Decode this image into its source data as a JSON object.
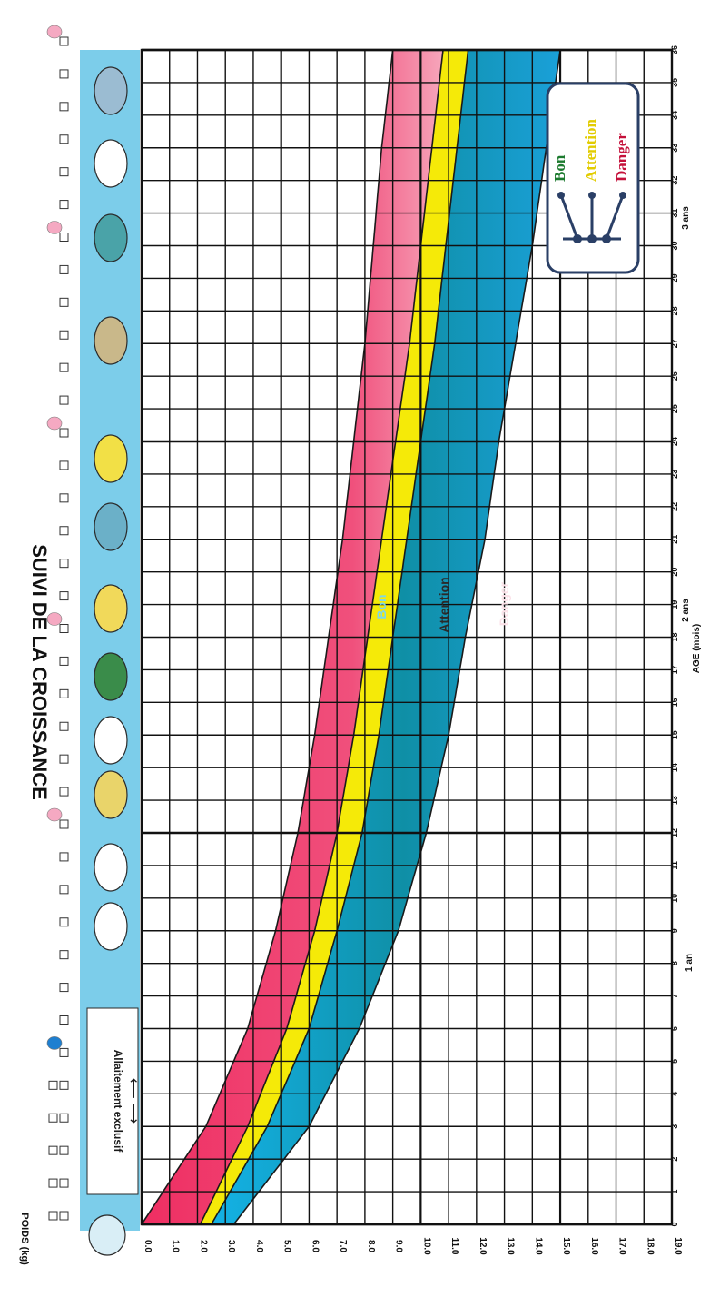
{
  "title": "SUIVI DE LA CROISSANCE",
  "y_axis_title": "POIDS (kg)",
  "x_axis_title": "AGE (mois)",
  "year_labels": [
    "1 an",
    "2 ans",
    "3 ans"
  ],
  "feeding_label": "Allaitement exclusif",
  "legend": {
    "items": [
      {
        "label": "Bon",
        "color": "#1c7a2e"
      },
      {
        "label": "Attention",
        "color": "#e8d400"
      },
      {
        "label": "Danger",
        "color": "#c4103a"
      }
    ]
  },
  "band_labels": {
    "good": "Bon",
    "caution": "Attention",
    "danger": "Danger"
  },
  "colors": {
    "good": "#19aee0",
    "good_core": "#0f8a9a",
    "caution": "#f5ea08",
    "danger": "#ec3a6a",
    "danger_edge": "#f58aa8",
    "strip": "#72cbe8",
    "grid": "#111111",
    "legend_box": "#2a3f66"
  },
  "icons": [
    "baby-icon",
    "drop-icon",
    "bowl-icon",
    "cup-icon",
    "bread-icon",
    "pot-icon",
    "meat-icon",
    "fruit-icon",
    "fish-icon",
    "papaya-icon",
    "peanut-icon",
    "leaf-icon",
    "egg-icon",
    "bird-icon"
  ],
  "chart_data": {
    "type": "area",
    "title": "SUIVI DE LA CROISSANCE",
    "xlabel": "AGE (mois)",
    "ylabel": "POIDS (kg)",
    "xlim": [
      0,
      36
    ],
    "ylim": [
      0,
      19
    ],
    "x_ticks": [
      0,
      1,
      2,
      3,
      4,
      5,
      6,
      7,
      8,
      9,
      10,
      11,
      12,
      13,
      14,
      15,
      16,
      17,
      18,
      19,
      20,
      21,
      22,
      23,
      24,
      25,
      26,
      27,
      28,
      29,
      30,
      31,
      32,
      33,
      34,
      35,
      36
    ],
    "y_ticks": [
      "0.0",
      "1.0",
      "2.0",
      "3.0",
      "4.0",
      "5.0",
      "6.0",
      "7.0",
      "8.0",
      "9.0",
      "10.0",
      "11.0",
      "12.0",
      "13.0",
      "14.0",
      "15.0",
      "16.0",
      "17.0",
      "18.0",
      "19.0"
    ],
    "x": [
      0,
      3,
      6,
      9,
      12,
      15,
      18,
      21,
      24,
      27,
      30,
      33,
      36
    ],
    "series": [
      {
        "name": "Bon",
        "values": [
          3.3,
          6.0,
          7.8,
          9.2,
          10.2,
          11.0,
          11.6,
          12.3,
          12.8,
          13.4,
          14.0,
          14.5,
          15.0
        ]
      },
      {
        "name": "Attention",
        "values": [
          2.5,
          4.5,
          6.0,
          7.0,
          7.9,
          8.5,
          9.0,
          9.5,
          10.0,
          10.5,
          10.9,
          11.3,
          11.7
        ]
      },
      {
        "name": "Danger",
        "values": [
          2.1,
          3.8,
          5.2,
          6.2,
          7.0,
          7.6,
          8.1,
          8.6,
          9.1,
          9.6,
          10.0,
          10.4,
          10.8
        ]
      },
      {
        "values": [
          0.0,
          2.3,
          3.8,
          4.8,
          5.6,
          6.2,
          6.7,
          7.2,
          7.6,
          8.0,
          8.3,
          8.6,
          9.0
        ]
      }
    ],
    "grid": true,
    "legend": "top-right"
  }
}
